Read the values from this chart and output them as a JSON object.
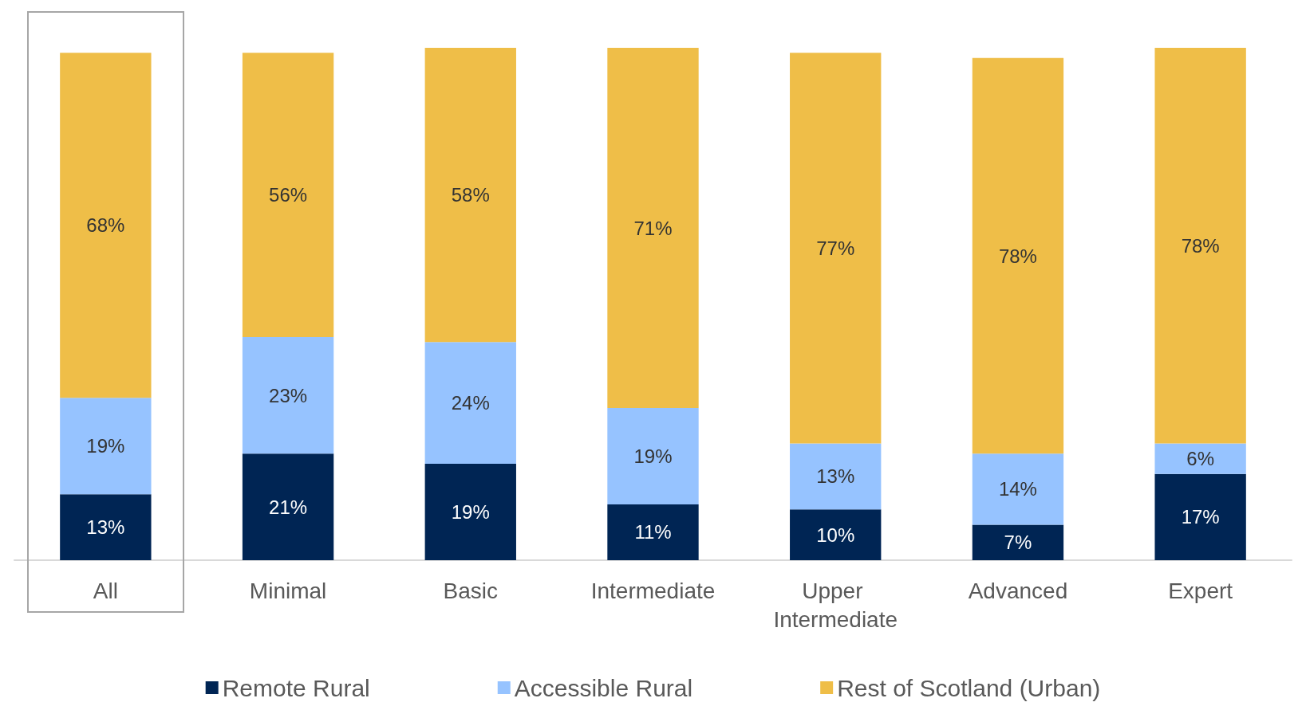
{
  "chart_data": {
    "type": "bar",
    "stacked": true,
    "legend": "bottom",
    "grid": false,
    "categories": [
      "All",
      "Minimal",
      "Basic",
      "Intermediate",
      "Upper Intermediate",
      "Advanced",
      "Expert"
    ],
    "series": [
      {
        "name": "Remote Rural",
        "color": "#002554",
        "values": [
          13,
          21,
          19,
          11,
          10,
          7,
          17
        ],
        "value_labels": [
          "13%",
          "21%",
          "19%",
          "11%",
          "10%",
          "7%",
          "17%"
        ]
      },
      {
        "name": "Accessible Rural",
        "color": "#96c3ff",
        "values": [
          19,
          23,
          24,
          19,
          13,
          14,
          6
        ],
        "value_labels": [
          "19%",
          "23%",
          "24%",
          "19%",
          "13%",
          "14%",
          "6%"
        ]
      },
      {
        "name": "Rest of Scotland (Urban)",
        "color": "#efbe48",
        "values": [
          68,
          56,
          58,
          71,
          77,
          78,
          78
        ],
        "value_labels": [
          "68%",
          "56%",
          "58%",
          "71%",
          "77%",
          "78%",
          "78%"
        ]
      }
    ]
  }
}
